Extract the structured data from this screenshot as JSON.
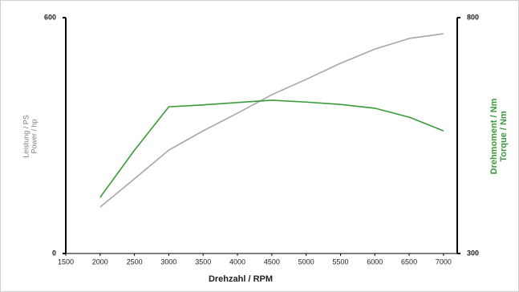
{
  "chart_data": {
    "type": "line",
    "x_label": "Drehzahl / RPM",
    "y_label": [
      "Leistung / PS",
      "Power / hp"
    ],
    "y2_label": [
      "Drehmoment / Nm",
      "Torque / Nm"
    ],
    "x": [
      2000,
      2500,
      3000,
      3500,
      4000,
      4500,
      5000,
      5500,
      6000,
      6500,
      7000
    ],
    "series": [
      {
        "color": "#a6a6a6",
        "values": [
          118,
          190,
          263,
          312,
          357,
          404,
          443,
          484,
          520,
          547,
          559
        ]
      },
      {
        "color": "#3a9a3a",
        "axis": "y2",
        "values": [
          419,
          519,
          611,
          615,
          620,
          625,
          621,
          616,
          608,
          589,
          560
        ]
      }
    ],
    "xlim": [
      1500,
      7200
    ],
    "xticks": [
      1500,
      2000,
      2500,
      3000,
      3500,
      4000,
      4500,
      5000,
      5500,
      6000,
      6500,
      7000
    ],
    "ylim": [
      0,
      600
    ],
    "yticks": [
      0,
      600
    ],
    "y2lim": [
      300,
      800
    ],
    "y2ticks": [
      300,
      800
    ],
    "y2_color": "#3a9a3a",
    "y_color": "#808080"
  }
}
